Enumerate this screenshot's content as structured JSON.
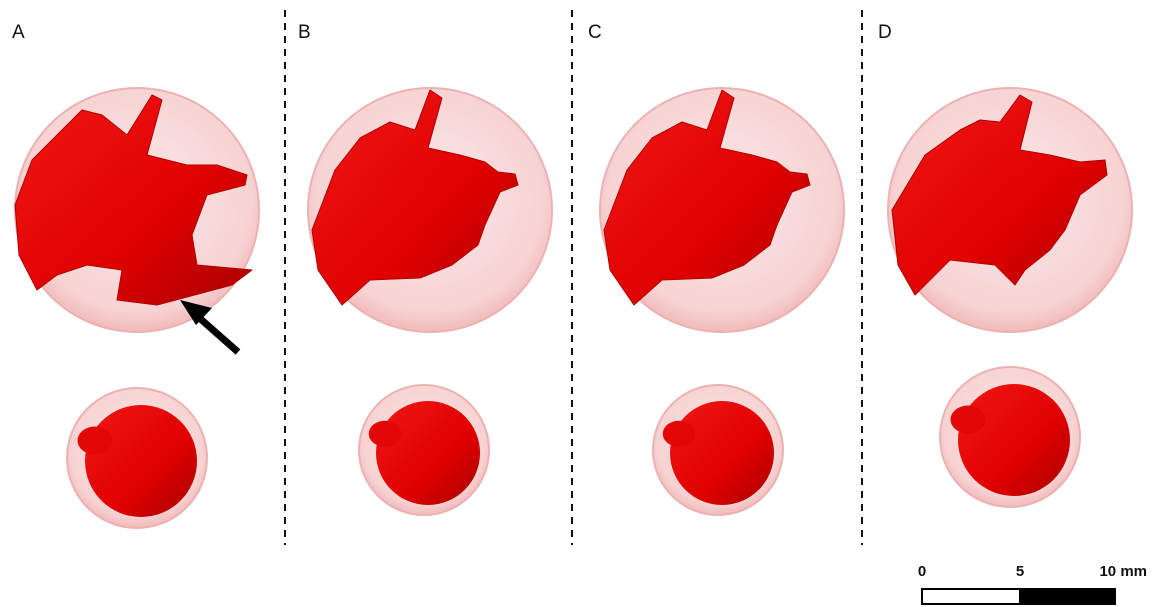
{
  "panels": [
    {
      "label": "A"
    },
    {
      "label": "B"
    },
    {
      "label": "C"
    },
    {
      "label": "D"
    }
  ],
  "scale_bar": {
    "labels": [
      "0",
      "5",
      "10 mm"
    ]
  }
}
